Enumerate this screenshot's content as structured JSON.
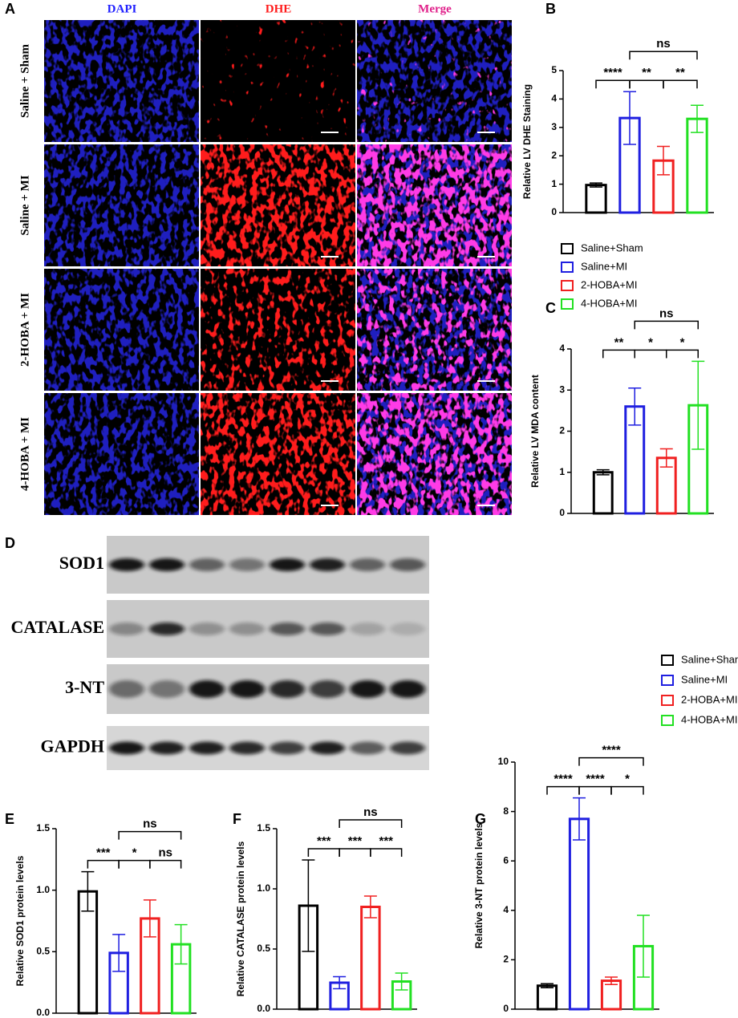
{
  "microscopy": {
    "panel": "A",
    "columns": [
      "DAPI",
      "DHE",
      "Merge"
    ],
    "rows": [
      "Saline + Sham",
      "Saline + MI",
      "2-HOBA + MI",
      "4-HOBA + MI"
    ]
  },
  "western_blot": {
    "panel": "D",
    "bands": [
      "SOD1",
      "CATALASE",
      "3-NT",
      "GAPDH"
    ]
  },
  "chart_data": [
    {
      "type": "bar",
      "panel": "B",
      "ylabel": "Relative LV DHE Staining",
      "ylim": [
        0,
        5
      ],
      "yticks": [
        0,
        1,
        2,
        3,
        4,
        5
      ],
      "legend": "below",
      "series": [
        {
          "name": "Saline+Sham",
          "color": "#000000",
          "values": [
            0.97
          ],
          "errors": [
            0.07
          ]
        },
        {
          "name": "Saline+MI",
          "color": "#1f1fe0",
          "values": [
            3.33
          ],
          "errors": [
            0.93
          ]
        },
        {
          "name": "2-HOBA+MI",
          "color": "#f02020",
          "values": [
            1.83
          ],
          "errors": [
            0.5
          ]
        },
        {
          "name": "4-HOBA+MI",
          "color": "#22e022",
          "values": [
            3.3
          ],
          "errors": [
            0.48
          ]
        }
      ],
      "annotations": [
        {
          "text": "****",
          "pair": [
            0,
            1
          ]
        },
        {
          "text": "**",
          "pair": [
            1,
            2
          ]
        },
        {
          "text": "**",
          "pair": [
            2,
            3
          ]
        },
        {
          "text": "ns",
          "pair": [
            1,
            3
          ]
        }
      ]
    },
    {
      "type": "bar",
      "panel": "C",
      "ylabel": "Relative LV MDA content",
      "ylim": [
        0,
        4
      ],
      "yticks": [
        0,
        1,
        2,
        3,
        4
      ],
      "series": [
        {
          "color": "#000000",
          "values": [
            1.0
          ],
          "errors": [
            0.06
          ]
        },
        {
          "color": "#1f1fe0",
          "values": [
            2.6
          ],
          "errors": [
            0.45
          ]
        },
        {
          "color": "#f02020",
          "values": [
            1.35
          ],
          "errors": [
            0.22
          ]
        },
        {
          "color": "#22e022",
          "values": [
            2.63
          ],
          "errors": [
            1.07
          ]
        }
      ],
      "annotations": [
        {
          "text": "**",
          "pair": [
            0,
            1
          ]
        },
        {
          "text": "*",
          "pair": [
            1,
            2
          ]
        },
        {
          "text": "*",
          "pair": [
            2,
            3
          ]
        },
        {
          "text": "ns",
          "pair": [
            1,
            3
          ]
        }
      ]
    },
    {
      "type": "bar",
      "panel": "E",
      "ylabel": "Relative SOD1 protein levels",
      "ylim": [
        0,
        1.5
      ],
      "yticks": [
        {
          "value": 0,
          "label": "0.0"
        },
        0.5,
        {
          "value": 1,
          "label": "1.0"
        },
        1.5
      ],
      "series": [
        {
          "color": "#000000",
          "values": [
            0.99
          ],
          "errors": [
            0.16
          ]
        },
        {
          "color": "#1f1fe0",
          "values": [
            0.49
          ],
          "errors": [
            0.15
          ]
        },
        {
          "color": "#f02020",
          "values": [
            0.77
          ],
          "errors": [
            0.15
          ]
        },
        {
          "color": "#22e022",
          "values": [
            0.56
          ],
          "errors": [
            0.16
          ]
        }
      ],
      "annotations": [
        {
          "text": "***",
          "pair": [
            0,
            1
          ]
        },
        {
          "text": "*",
          "pair": [
            1,
            2
          ]
        },
        {
          "text": "ns",
          "pair": [
            2,
            3
          ]
        },
        {
          "text": "ns",
          "pair": [
            1,
            3
          ]
        }
      ]
    },
    {
      "type": "bar",
      "panel": "F",
      "ylabel": "Relative CATALASE protein levels",
      "ylim": [
        0,
        1.5
      ],
      "yticks": [
        {
          "value": 0,
          "label": "0.0"
        },
        0.5,
        {
          "value": 1,
          "label": "1.0"
        },
        1.5
      ],
      "series": [
        {
          "color": "#000000",
          "values": [
            0.86
          ],
          "errors": [
            0.38
          ]
        },
        {
          "color": "#1f1fe0",
          "values": [
            0.22
          ],
          "errors": [
            0.05
          ]
        },
        {
          "color": "#f02020",
          "values": [
            0.85
          ],
          "errors": [
            0.09
          ]
        },
        {
          "color": "#22e022",
          "values": [
            0.23
          ],
          "errors": [
            0.07
          ]
        }
      ],
      "annotations": [
        {
          "text": "***",
          "pair": [
            0,
            1
          ]
        },
        {
          "text": "***",
          "pair": [
            1,
            2
          ]
        },
        {
          "text": "***",
          "pair": [
            2,
            3
          ]
        },
        {
          "text": "ns",
          "pair": [
            1,
            3
          ]
        }
      ]
    },
    {
      "type": "bar",
      "panel": "G",
      "ylabel": "Relative 3-NT protein levels",
      "ylim": [
        0,
        10
      ],
      "yticks": [
        0,
        2,
        4,
        6,
        8,
        10
      ],
      "legend": "right",
      "series": [
        {
          "name": "Saline+Sham",
          "color": "#000000",
          "values": [
            0.95
          ],
          "errors": [
            0.08
          ]
        },
        {
          "name": "Saline+MI",
          "color": "#1f1fe0",
          "values": [
            7.7
          ],
          "errors": [
            0.85
          ]
        },
        {
          "name": "2-HOBA+MI",
          "color": "#f02020",
          "values": [
            1.15
          ],
          "errors": [
            0.15
          ]
        },
        {
          "name": "4-HOBA+MI",
          "color": "#22e022",
          "values": [
            2.55
          ],
          "errors": [
            1.25
          ]
        }
      ],
      "annotations": [
        {
          "text": "****",
          "pair": [
            0,
            1
          ]
        },
        {
          "text": "****",
          "pair": [
            1,
            2
          ]
        },
        {
          "text": "*",
          "pair": [
            2,
            3
          ]
        },
        {
          "text": "****",
          "pair": [
            1,
            3
          ]
        }
      ]
    }
  ]
}
